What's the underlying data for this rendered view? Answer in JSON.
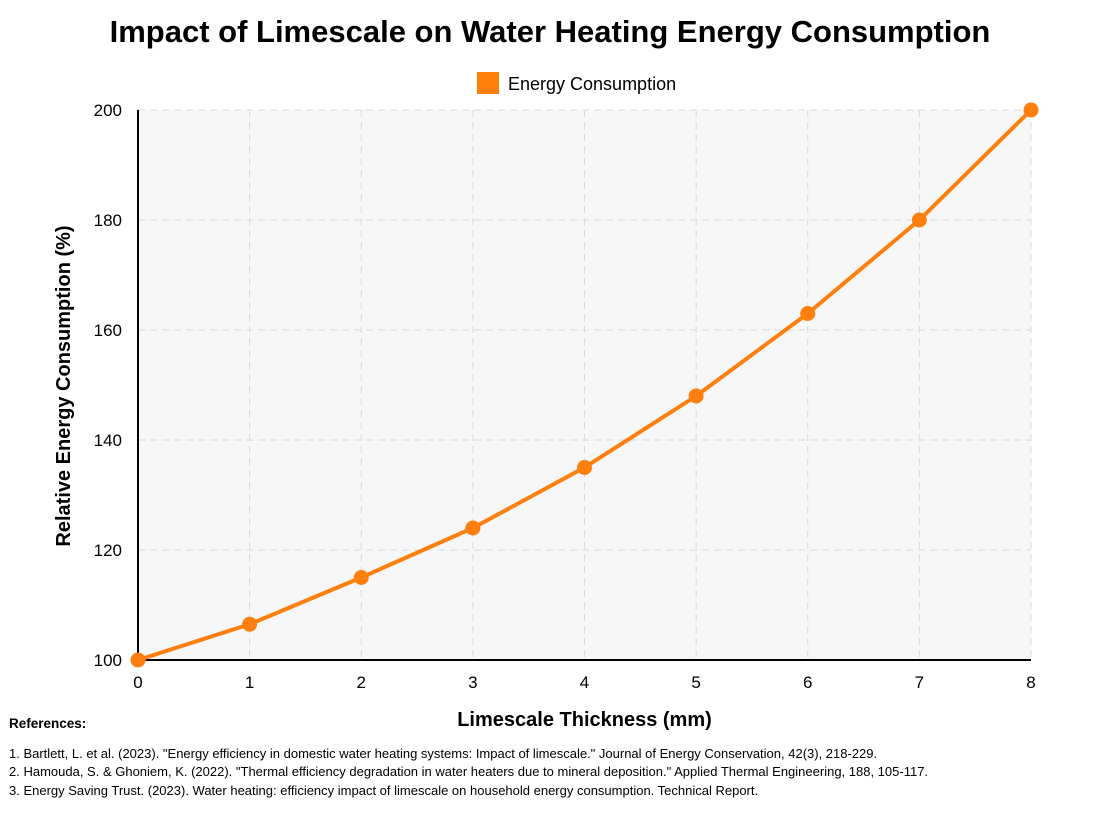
{
  "chart_data": {
    "type": "line",
    "title": "Impact of Limescale on Water Heating Energy Consumption",
    "xlabel": "Limescale Thickness (mm)",
    "ylabel": "Relative Energy Consumption (%)",
    "x": [
      0,
      1,
      2,
      3,
      4,
      5,
      6,
      7,
      8
    ],
    "xlim": [
      0,
      8
    ],
    "ylim": [
      100,
      200
    ],
    "x_ticks": [
      0,
      1,
      2,
      3,
      4,
      5,
      6,
      7,
      8
    ],
    "y_ticks": [
      100,
      120,
      140,
      160,
      180,
      200
    ],
    "grid": true,
    "grid_style": "dashed",
    "legend_position": "top-center",
    "series": [
      {
        "name": "Energy Consumption",
        "color": "#ff7f0e",
        "values": [
          100,
          106.5,
          115,
          124,
          135,
          148,
          163,
          180,
          200
        ]
      }
    ]
  },
  "references": {
    "heading": "References:",
    "items": [
      "1. Bartlett, L. et al. (2023). \"Energy efficiency in domestic water heating systems: Impact of limescale.\" Journal of Energy Conservation, 42(3), 218-229.",
      "2. Hamouda, S. & Ghoniem, K. (2022). \"Thermal efficiency degradation in water heaters due to mineral deposition.\" Applied Thermal Engineering, 188, 105-117.",
      "3. Energy Saving Trust. (2023). Water heating: efficiency impact of limescale on household energy consumption. Technical Report."
    ]
  },
  "colors": {
    "plot_background": "#f7f7f7",
    "grid": "#d9d9d9",
    "axis": "#000000",
    "series": "#ff7f0e"
  }
}
